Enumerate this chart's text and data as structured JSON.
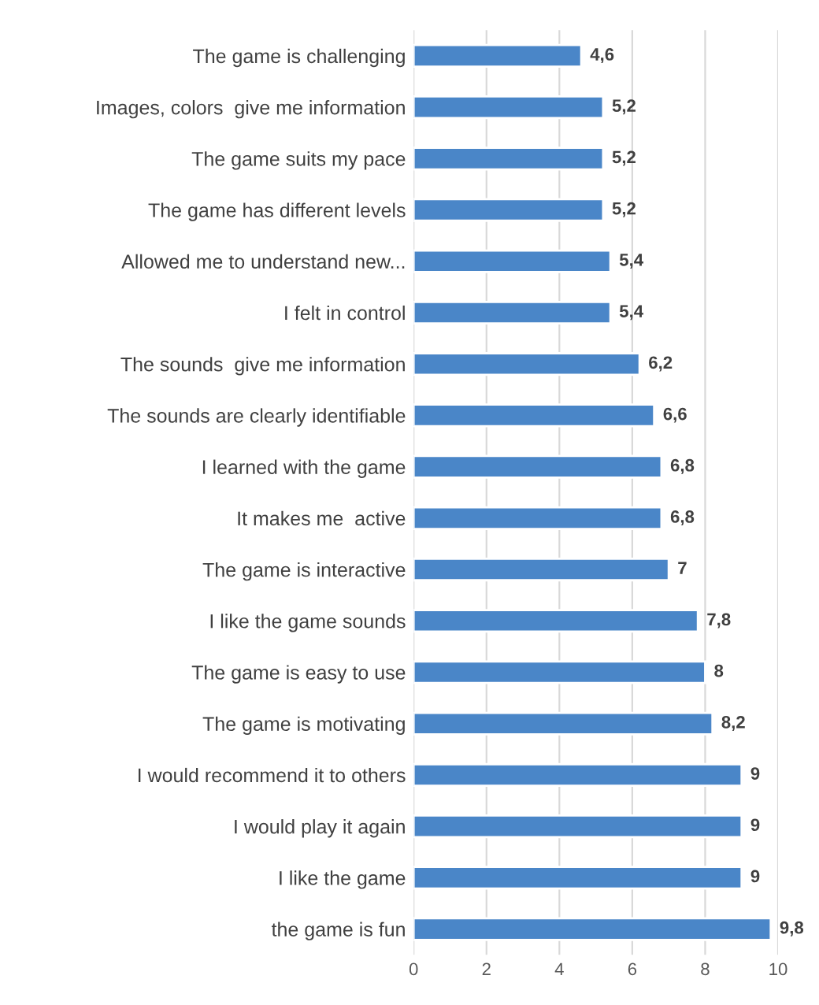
{
  "chart_data": {
    "type": "bar",
    "orientation": "horizontal",
    "categories": [
      "The game is challenging",
      "Images, colors  give me information",
      "The game suits my pace",
      "The game has different levels",
      "Allowed me to understand new...",
      "I felt in control",
      "The sounds  give me information",
      "The sounds are clearly identifiable",
      "I learned with the game",
      "It makes me  active",
      "The game is interactive",
      "I like the game sounds",
      "The game is easy to use",
      "The game is motivating",
      "I would recommend it to others",
      "I would play it again",
      "I like the game",
      "the game is fun"
    ],
    "values": [
      4.6,
      5.2,
      5.2,
      5.2,
      5.4,
      5.4,
      6.2,
      6.6,
      6.8,
      6.8,
      7,
      7.8,
      8,
      8.2,
      9,
      9,
      9,
      9.8
    ],
    "value_labels": [
      "4,6",
      "5,2",
      "5,2",
      "5,2",
      "5,4",
      "5,4",
      "6,2",
      "6,6",
      "6,8",
      "6,8",
      "7",
      "7,8",
      "8",
      "8,2",
      "9",
      "9",
      "9",
      "9,8"
    ],
    "color": "#4a86c8",
    "xlim": [
      0,
      10
    ],
    "xticks": [
      0,
      2,
      4,
      6,
      8,
      10
    ],
    "grid": "x"
  }
}
